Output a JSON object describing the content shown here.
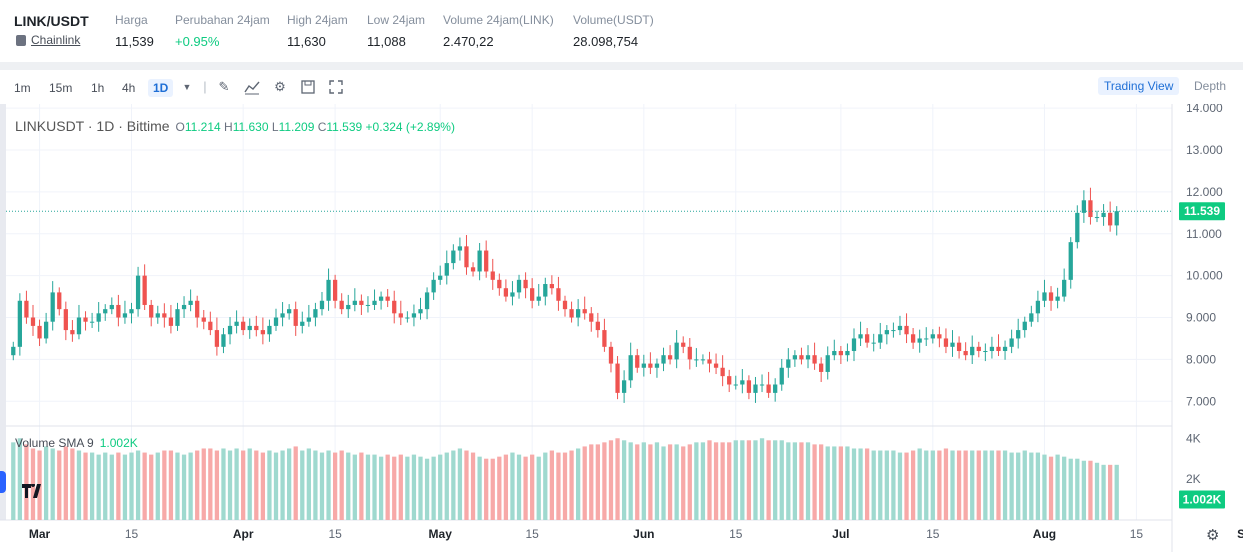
{
  "ticker": {
    "pair": "LINK/USDT",
    "coin_name": "Chainlink",
    "stats": [
      {
        "label": "Harga",
        "value": "11,539",
        "up": false
      },
      {
        "label": "Perubahan 24jam",
        "value": "+0.95%",
        "up": true
      },
      {
        "label": "High 24jam",
        "value": "11,630",
        "up": false
      },
      {
        "label": "Low 24jam",
        "value": "11,088",
        "up": false
      },
      {
        "label": "Volume 24jam(LINK)",
        "value": "2.470,22",
        "up": false
      },
      {
        "label": "Volume(USDT)",
        "value": "28.098,754",
        "up": false
      }
    ]
  },
  "toolbar": {
    "timeframes": [
      "1m",
      "15m",
      "1h",
      "4h",
      "1D"
    ],
    "active_timeframe": "1D",
    "trading_view_label": "Trading View",
    "depth_label": "Depth"
  },
  "legend": {
    "symbol": "LINKUSDT · 1D · Bittime",
    "o_label": "O",
    "o": "11.214",
    "h_label": "H",
    "h": "11.630",
    "l_label": "L",
    "l": "11.209",
    "c_label": "C",
    "c": "11.539",
    "change": "+0.324 (+2.89%)"
  },
  "volume_legend": {
    "label": "Volume SMA 9",
    "value": "1.002K"
  },
  "colors": {
    "up": "#26a69a",
    "down": "#ef5350",
    "vol_up": "#9fd9cf",
    "vol_down": "#f7a9a8",
    "last_price": "#0ecb81"
  },
  "chart_data": {
    "type": "candlestick",
    "price_axis": {
      "ticks": [
        "14.000",
        "13.000",
        "12.000",
        "11.000",
        "10.000",
        "9.000",
        "8.000",
        "7.000"
      ],
      "range": [
        6.6,
        14.1
      ]
    },
    "volume_axis": {
      "ticks": [
        "4K",
        "2K"
      ],
      "range": [
        0,
        4.6
      ]
    },
    "last_price": "11.539",
    "last_volume": "1.002K",
    "x_labels": [
      "Mar",
      "15",
      "Apr",
      "15",
      "May",
      "15",
      "Jun",
      "15",
      "Jul",
      "15",
      "Aug",
      "15",
      "Sep"
    ],
    "x_label_days": [
      4,
      18,
      35,
      49,
      65,
      79,
      96,
      110,
      126,
      140,
      157,
      171,
      188
    ],
    "closes": [
      8.3,
      9.4,
      9.0,
      8.8,
      8.5,
      8.9,
      9.6,
      9.2,
      8.7,
      8.6,
      9.0,
      8.9,
      8.9,
      9.1,
      9.2,
      9.3,
      9.0,
      9.1,
      9.2,
      10.0,
      9.3,
      9.0,
      9.1,
      9.0,
      8.8,
      9.2,
      9.3,
      9.4,
      9.0,
      8.9,
      8.7,
      8.3,
      8.6,
      8.8,
      8.9,
      8.7,
      8.8,
      8.7,
      8.6,
      8.8,
      9.0,
      9.1,
      9.2,
      8.8,
      8.9,
      9.0,
      9.2,
      9.4,
      9.9,
      9.4,
      9.2,
      9.3,
      9.4,
      9.3,
      9.3,
      9.4,
      9.5,
      9.4,
      9.1,
      9.0,
      9.0,
      9.1,
      9.2,
      9.6,
      9.9,
      10.0,
      10.3,
      10.6,
      10.7,
      10.2,
      10.1,
      10.6,
      10.1,
      9.9,
      9.7,
      9.5,
      9.6,
      9.9,
      9.7,
      9.4,
      9.5,
      9.8,
      9.7,
      9.4,
      9.2,
      9.0,
      9.2,
      9.1,
      8.9,
      8.7,
      8.3,
      7.9,
      7.2,
      7.5,
      8.1,
      7.8,
      7.9,
      7.8,
      7.9,
      8.1,
      8.0,
      8.4,
      8.3,
      8.0,
      8.0,
      8.0,
      7.9,
      7.8,
      7.6,
      7.4,
      7.4,
      7.5,
      7.2,
      7.4,
      7.4,
      7.2,
      7.4,
      7.8,
      8.0,
      8.1,
      8.0,
      8.1,
      7.9,
      7.7,
      8.1,
      8.2,
      8.1,
      8.2,
      8.5,
      8.6,
      8.4,
      8.4,
      8.6,
      8.7,
      8.7,
      8.8,
      8.6,
      8.4,
      8.5,
      8.5,
      8.6,
      8.5,
      8.3,
      8.4,
      8.2,
      8.1,
      8.3,
      8.2,
      8.2,
      8.3,
      8.2,
      8.3,
      8.5,
      8.7,
      8.9,
      9.1,
      9.4,
      9.6,
      9.4,
      9.5,
      9.9,
      10.8,
      11.5,
      11.8,
      11.4,
      11.4,
      11.5,
      11.2,
      11.54
    ],
    "volumes": [
      3.8,
      4.0,
      3.7,
      3.5,
      3.4,
      3.6,
      3.5,
      3.4,
      3.6,
      3.5,
      3.4,
      3.3,
      3.3,
      3.2,
      3.3,
      3.2,
      3.3,
      3.2,
      3.3,
      3.4,
      3.3,
      3.2,
      3.3,
      3.4,
      3.4,
      3.3,
      3.2,
      3.3,
      3.4,
      3.5,
      3.5,
      3.4,
      3.5,
      3.4,
      3.5,
      3.4,
      3.5,
      3.4,
      3.3,
      3.4,
      3.3,
      3.4,
      3.5,
      3.6,
      3.4,
      3.5,
      3.4,
      3.3,
      3.4,
      3.3,
      3.4,
      3.3,
      3.2,
      3.3,
      3.2,
      3.2,
      3.1,
      3.2,
      3.1,
      3.2,
      3.1,
      3.2,
      3.1,
      3.0,
      3.1,
      3.2,
      3.3,
      3.4,
      3.5,
      3.4,
      3.3,
      3.1,
      3.0,
      3.0,
      3.1,
      3.2,
      3.3,
      3.2,
      3.1,
      3.2,
      3.1,
      3.3,
      3.4,
      3.3,
      3.3,
      3.4,
      3.5,
      3.6,
      3.7,
      3.7,
      3.8,
      3.9,
      4.0,
      3.9,
      3.8,
      3.7,
      3.8,
      3.7,
      3.8,
      3.6,
      3.7,
      3.7,
      3.6,
      3.7,
      3.8,
      3.8,
      3.9,
      3.8,
      3.8,
      3.8,
      3.9,
      3.9,
      3.9,
      3.9,
      4.0,
      3.9,
      3.9,
      3.9,
      3.8,
      3.8,
      3.8,
      3.8,
      3.7,
      3.7,
      3.6,
      3.6,
      3.6,
      3.6,
      3.5,
      3.5,
      3.5,
      3.4,
      3.4,
      3.4,
      3.4,
      3.3,
      3.3,
      3.4,
      3.5,
      3.4,
      3.4,
      3.4,
      3.5,
      3.4,
      3.4,
      3.4,
      3.4,
      3.4,
      3.4,
      3.4,
      3.4,
      3.4,
      3.3,
      3.3,
      3.4,
      3.3,
      3.3,
      3.2,
      3.1,
      3.2,
      3.1,
      3.0,
      3.0,
      2.9,
      2.9,
      2.8,
      2.7,
      2.7,
      2.7,
      2.6,
      1.0
    ]
  }
}
